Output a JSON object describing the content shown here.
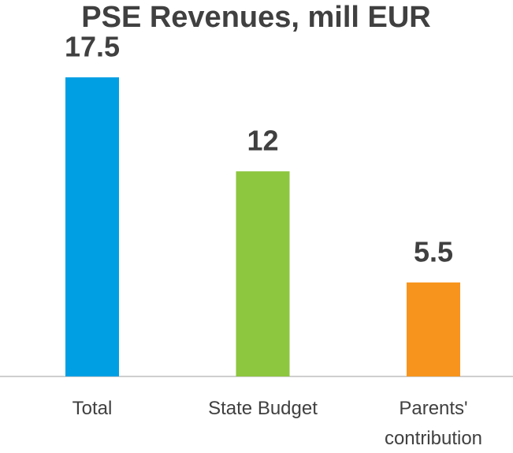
{
  "chart_data": {
    "type": "bar",
    "title": "PSE Revenues, mill EUR",
    "categories": [
      "Total",
      "State Budget",
      "Parents' contribution"
    ],
    "values": [
      17.5,
      12,
      5.5
    ],
    "colors": [
      "#009fe3",
      "#8dc63f",
      "#f7941d"
    ]
  }
}
